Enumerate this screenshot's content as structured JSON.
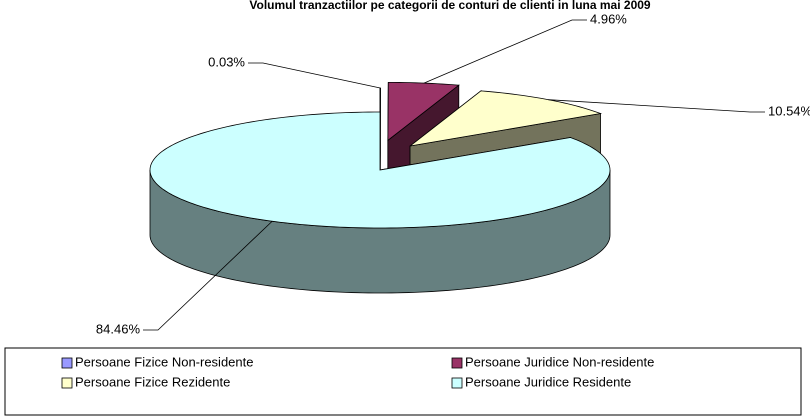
{
  "chart_data": {
    "type": "pie3d",
    "title": "Volumul tranzactiilor pe categorii de conturi de clienti in luna mai 2009",
    "categories": [
      "Persoane Fizice Non-residente",
      "Persoane Juridice Non-residente",
      "Persoane Fizice Rezidente",
      "Persoane Juridice Residente"
    ],
    "values": [
      0.03,
      4.96,
      10.54,
      84.46
    ],
    "value_labels": [
      "0.03%",
      "4.96%",
      "10.54%",
      "84.46%"
    ],
    "colors": [
      "#9999ff",
      "#993366",
      "#ffffcc",
      "#ccffff"
    ],
    "legend": "bottom"
  }
}
